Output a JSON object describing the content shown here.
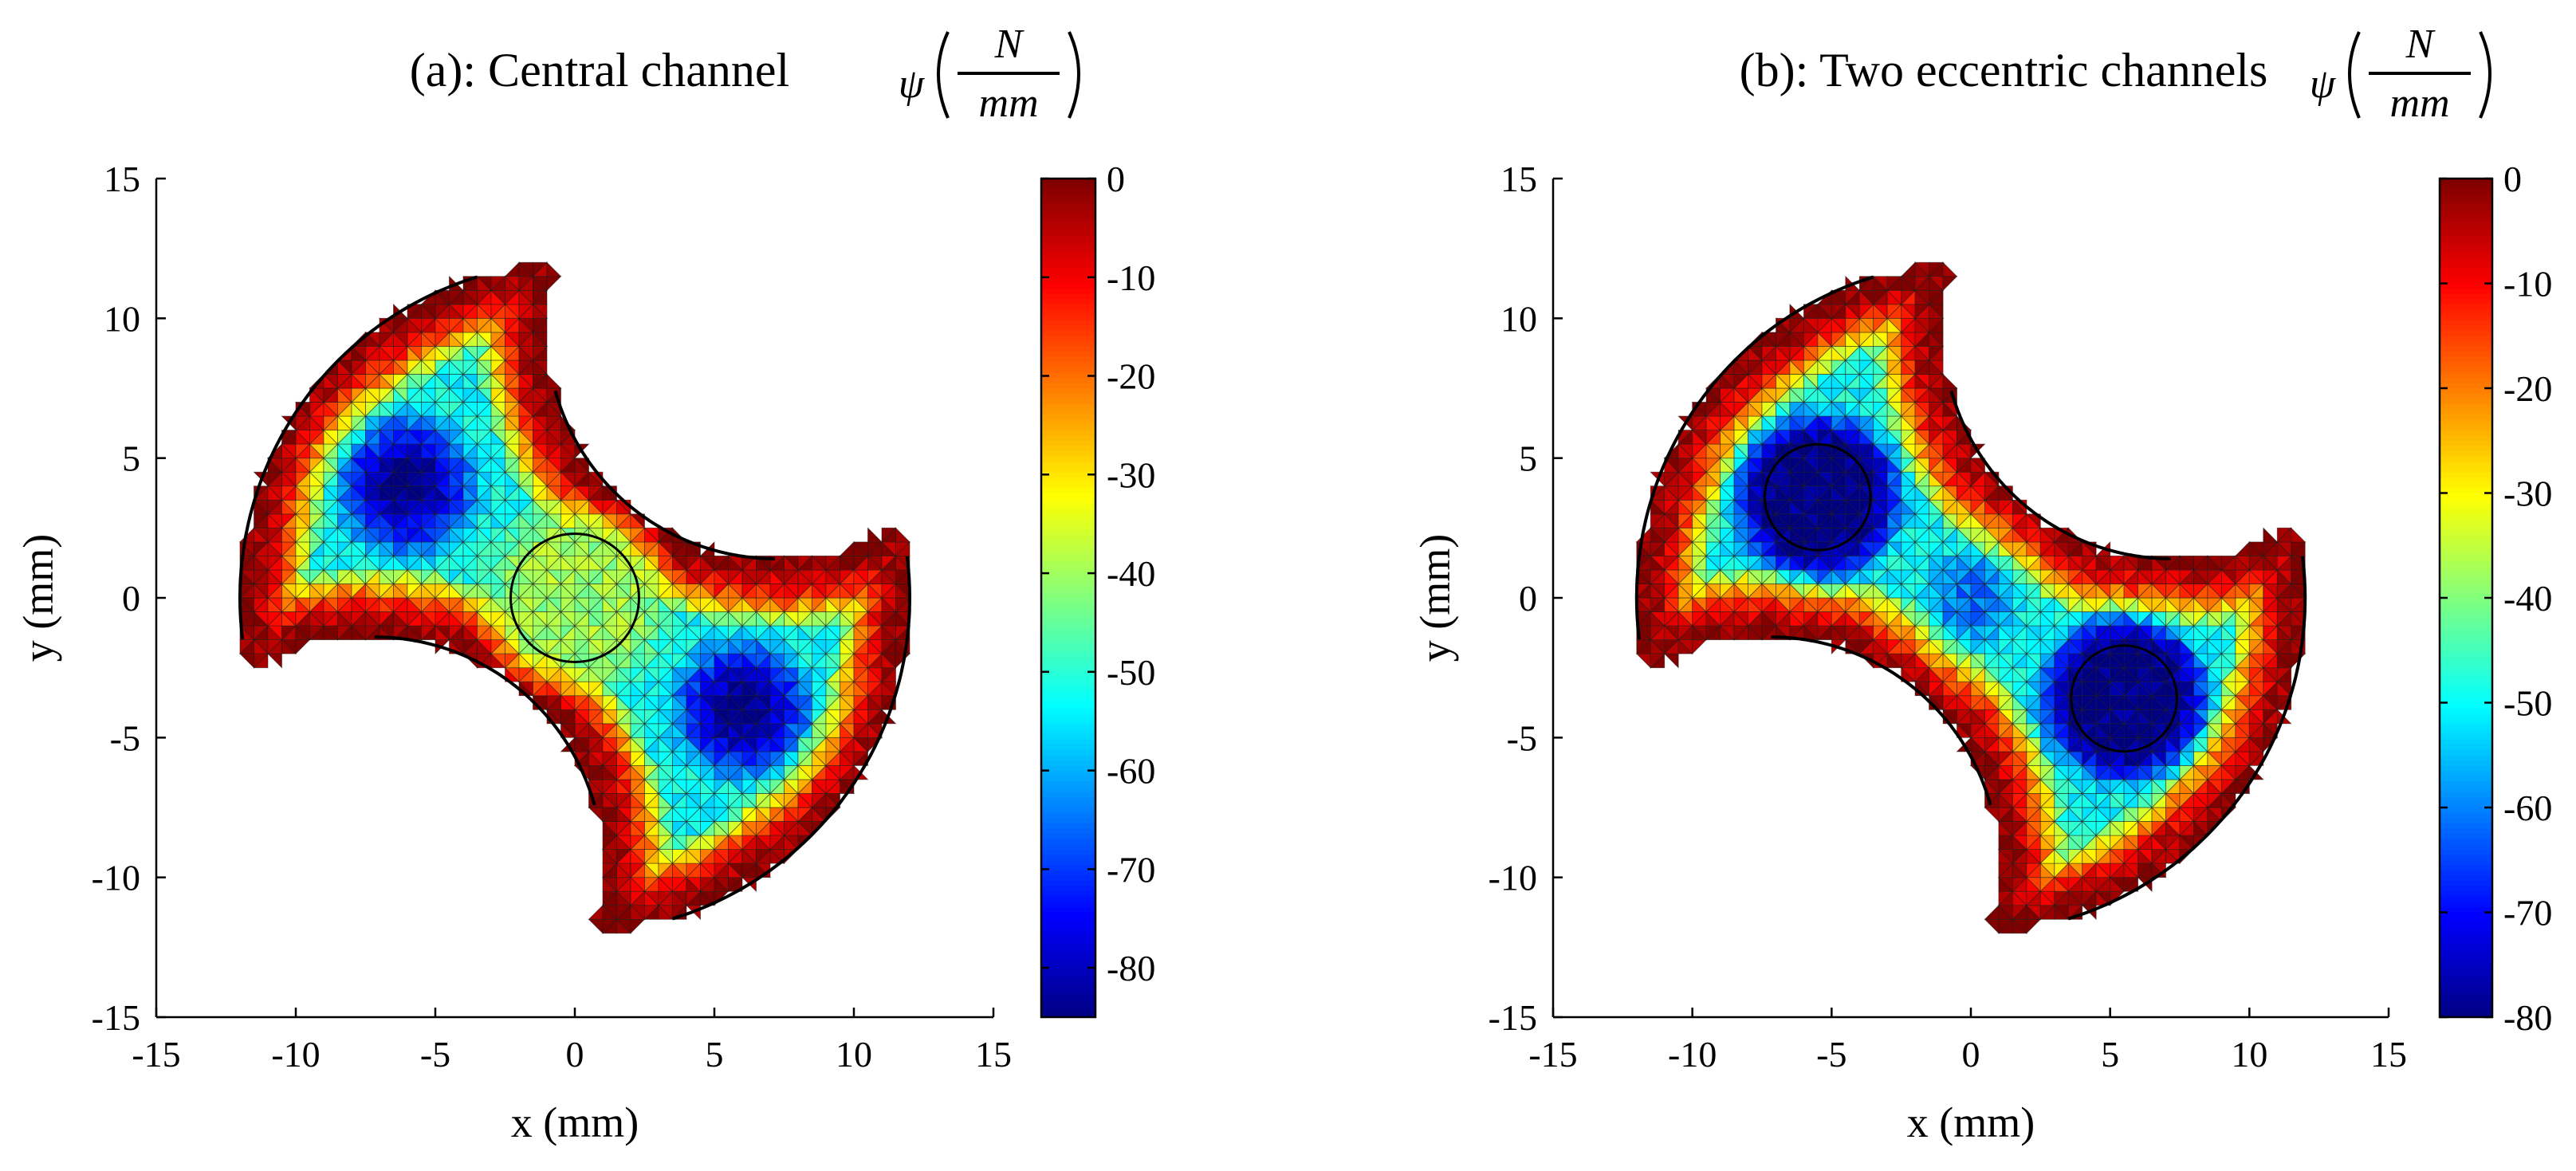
{
  "chart_data": [
    {
      "type": "heatmap",
      "plot_kind": "finite-element contour map on a triangular mesh",
      "title": "(a): Central channel",
      "xlabel": "x (mm)",
      "ylabel": "y (mm)",
      "xlim": [
        -15,
        15
      ],
      "ylim": [
        -15,
        15
      ],
      "xticks": [
        "-15",
        "-10",
        "-5",
        "0",
        "5",
        "10",
        "15"
      ],
      "yticks": [
        "15",
        "10",
        "5",
        "0",
        "-5",
        "-10",
        "-15"
      ],
      "colorbar": {
        "symbol": "ψ",
        "unit_numerator": "N",
        "unit_denominator": "mm",
        "range": [
          -85,
          0
        ],
        "ticks": [
          "0",
          "-10",
          "-20",
          "-30",
          "-40",
          "-50",
          "-60",
          "-70",
          "-80"
        ],
        "colormap": "jet"
      },
      "field": {
        "minima": [
          {
            "x": -6,
            "y": 4,
            "value": -85
          },
          {
            "x": 6,
            "y": -4,
            "value": -85
          }
        ],
        "boundary_value": 0
      },
      "channels": [
        {
          "x": 0,
          "y": 0,
          "r": 2.3,
          "value": -40
        }
      ]
    },
    {
      "type": "heatmap",
      "plot_kind": "finite-element contour map on a triangular mesh",
      "title": "(b): Two eccentric channels",
      "xlabel": "x (mm)",
      "ylabel": "y (mm)",
      "xlim": [
        -15,
        15
      ],
      "ylim": [
        -15,
        15
      ],
      "xticks": [
        "-15",
        "-10",
        "-5",
        "0",
        "5",
        "10",
        "15"
      ],
      "yticks": [
        "15",
        "10",
        "5",
        "0",
        "-5",
        "-10",
        "-15"
      ],
      "colorbar": {
        "symbol": "ψ",
        "unit_numerator": "N",
        "unit_denominator": "mm",
        "range": [
          -80,
          0
        ],
        "ticks": [
          "0",
          "-10",
          "-20",
          "-30",
          "-40",
          "-50",
          "-60",
          "-70",
          "-80"
        ],
        "colormap": "jet"
      },
      "field": {
        "minima": [
          {
            "x": -5.5,
            "y": 3.6,
            "value": -80
          },
          {
            "x": 5.5,
            "y": -3.6,
            "value": -80
          },
          {
            "x": 0,
            "y": 0,
            "value": -62
          }
        ],
        "boundary_value": 0
      },
      "channels": [
        {
          "x": -5.5,
          "y": 3.6,
          "r": 1.9,
          "value": -80
        },
        {
          "x": 5.5,
          "y": -3.6,
          "r": 1.9,
          "value": -80
        }
      ]
    }
  ]
}
